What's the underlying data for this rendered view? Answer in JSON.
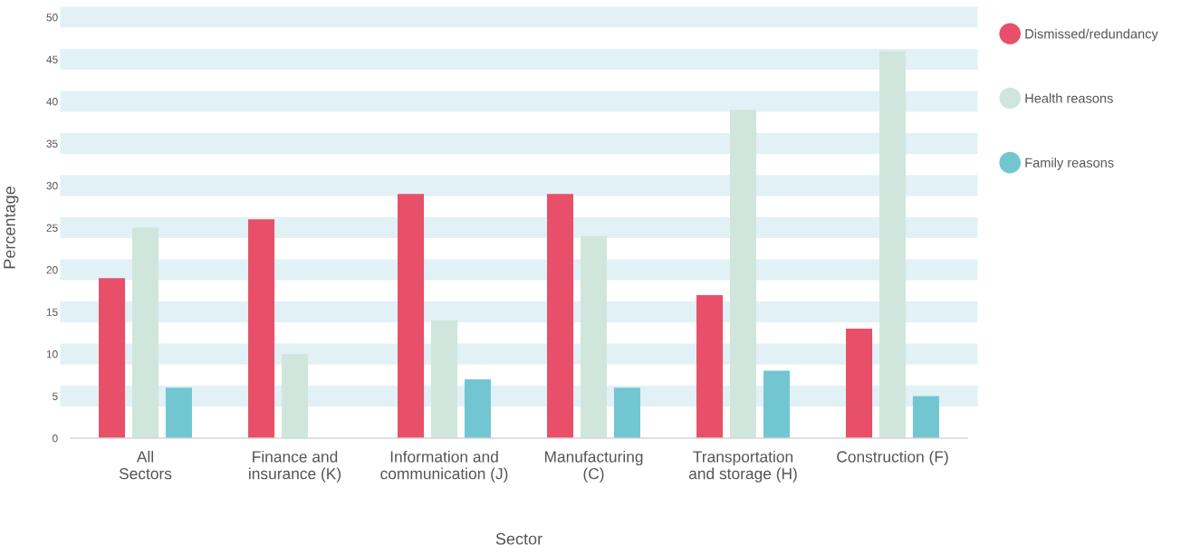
{
  "chart_data": {
    "type": "bar",
    "xlabel": "Sector",
    "ylabel": "Percentage",
    "categories": [
      "All\nSectors",
      "Finance and\ninsurance (K)",
      "Information and\ncommunication (J)",
      "Manufacturing\n(C)",
      "Transportation\nand storage (H)",
      "Construction (F)"
    ],
    "series": [
      {
        "name": "Dismissed/redundancy",
        "color": "#e8506a",
        "values": [
          19,
          26,
          29,
          29,
          17,
          13
        ]
      },
      {
        "name": "Health reasons",
        "color": "#d0e6dd",
        "values": [
          25,
          10,
          14,
          24,
          39,
          46
        ]
      },
      {
        "name": "Family reasons",
        "color": "#72c6d2",
        "values": [
          6,
          null,
          7,
          6,
          8,
          5
        ]
      }
    ],
    "ylim": [
      0,
      50
    ],
    "yticks": [
      0,
      5,
      10,
      15,
      20,
      25,
      30,
      35,
      40,
      45,
      50
    ],
    "grid": "y",
    "legend": "top right"
  }
}
